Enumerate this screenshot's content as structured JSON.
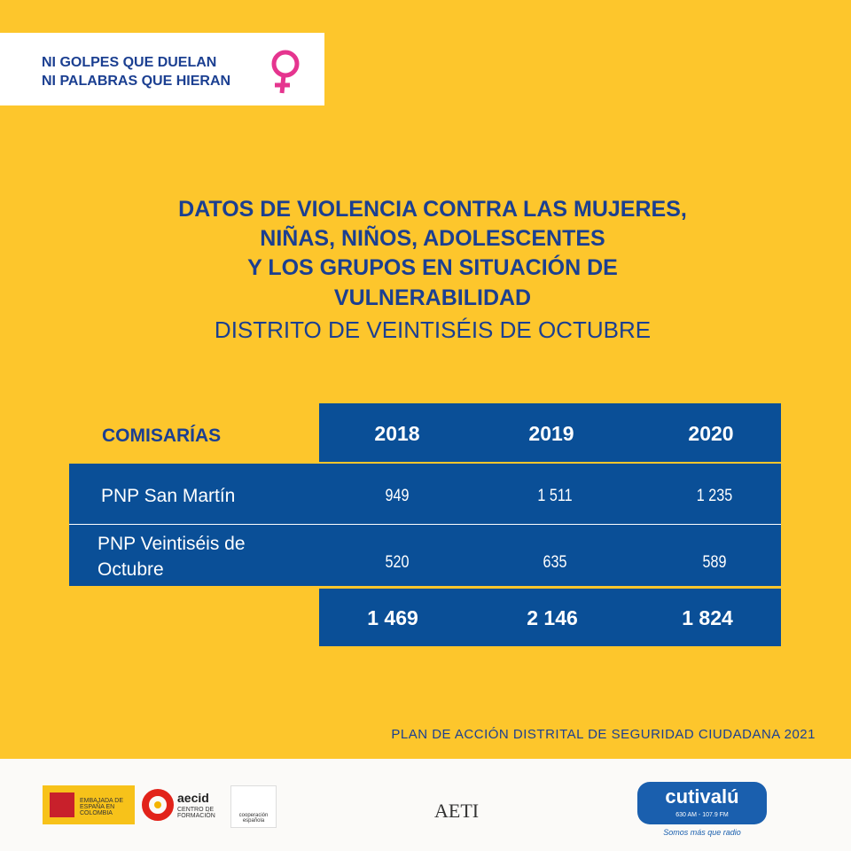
{
  "header": {
    "lines": [
      "NI GOLPES QUE DUELAN",
      "NI PALABRAS QUE HIERAN"
    ]
  },
  "title": {
    "lines": [
      "DATOS DE VIOLENCIA CONTRA LAS MUJERES,",
      "NIÑAS, NIÑOS, ADOLESCENTES",
      "Y LOS GRUPOS EN SITUACIÓN DE",
      "VULNERABILIDAD"
    ],
    "subtitle": "DISTRITO DE VEINTISÉIS DE OCTUBRE"
  },
  "table": {
    "header": [
      "COMISARÍAS",
      "2018",
      "2019",
      "2020"
    ],
    "rows": [
      [
        "PNP San Martín",
        "949",
        "1 511",
        "1 235"
      ],
      [
        "PNP Veintiséis de Octubre",
        "520",
        "635",
        "589"
      ]
    ],
    "totals": [
      "1 469",
      "2 146",
      "1 824"
    ]
  },
  "source": "PLAN DE ACCIÓN DISTRITAL DE SEGURIDAD CIUDADANA 2021",
  "footer": {
    "logos": [
      "EMBAJADA DE ESPAÑA EN COLOMBIA",
      "aecid",
      "CENTRO DE FORMACIÓN",
      "cooperación española",
      "AETI",
      "cutivalú",
      "630 AM - 107.9 FM",
      "Somos más que radio"
    ]
  }
}
